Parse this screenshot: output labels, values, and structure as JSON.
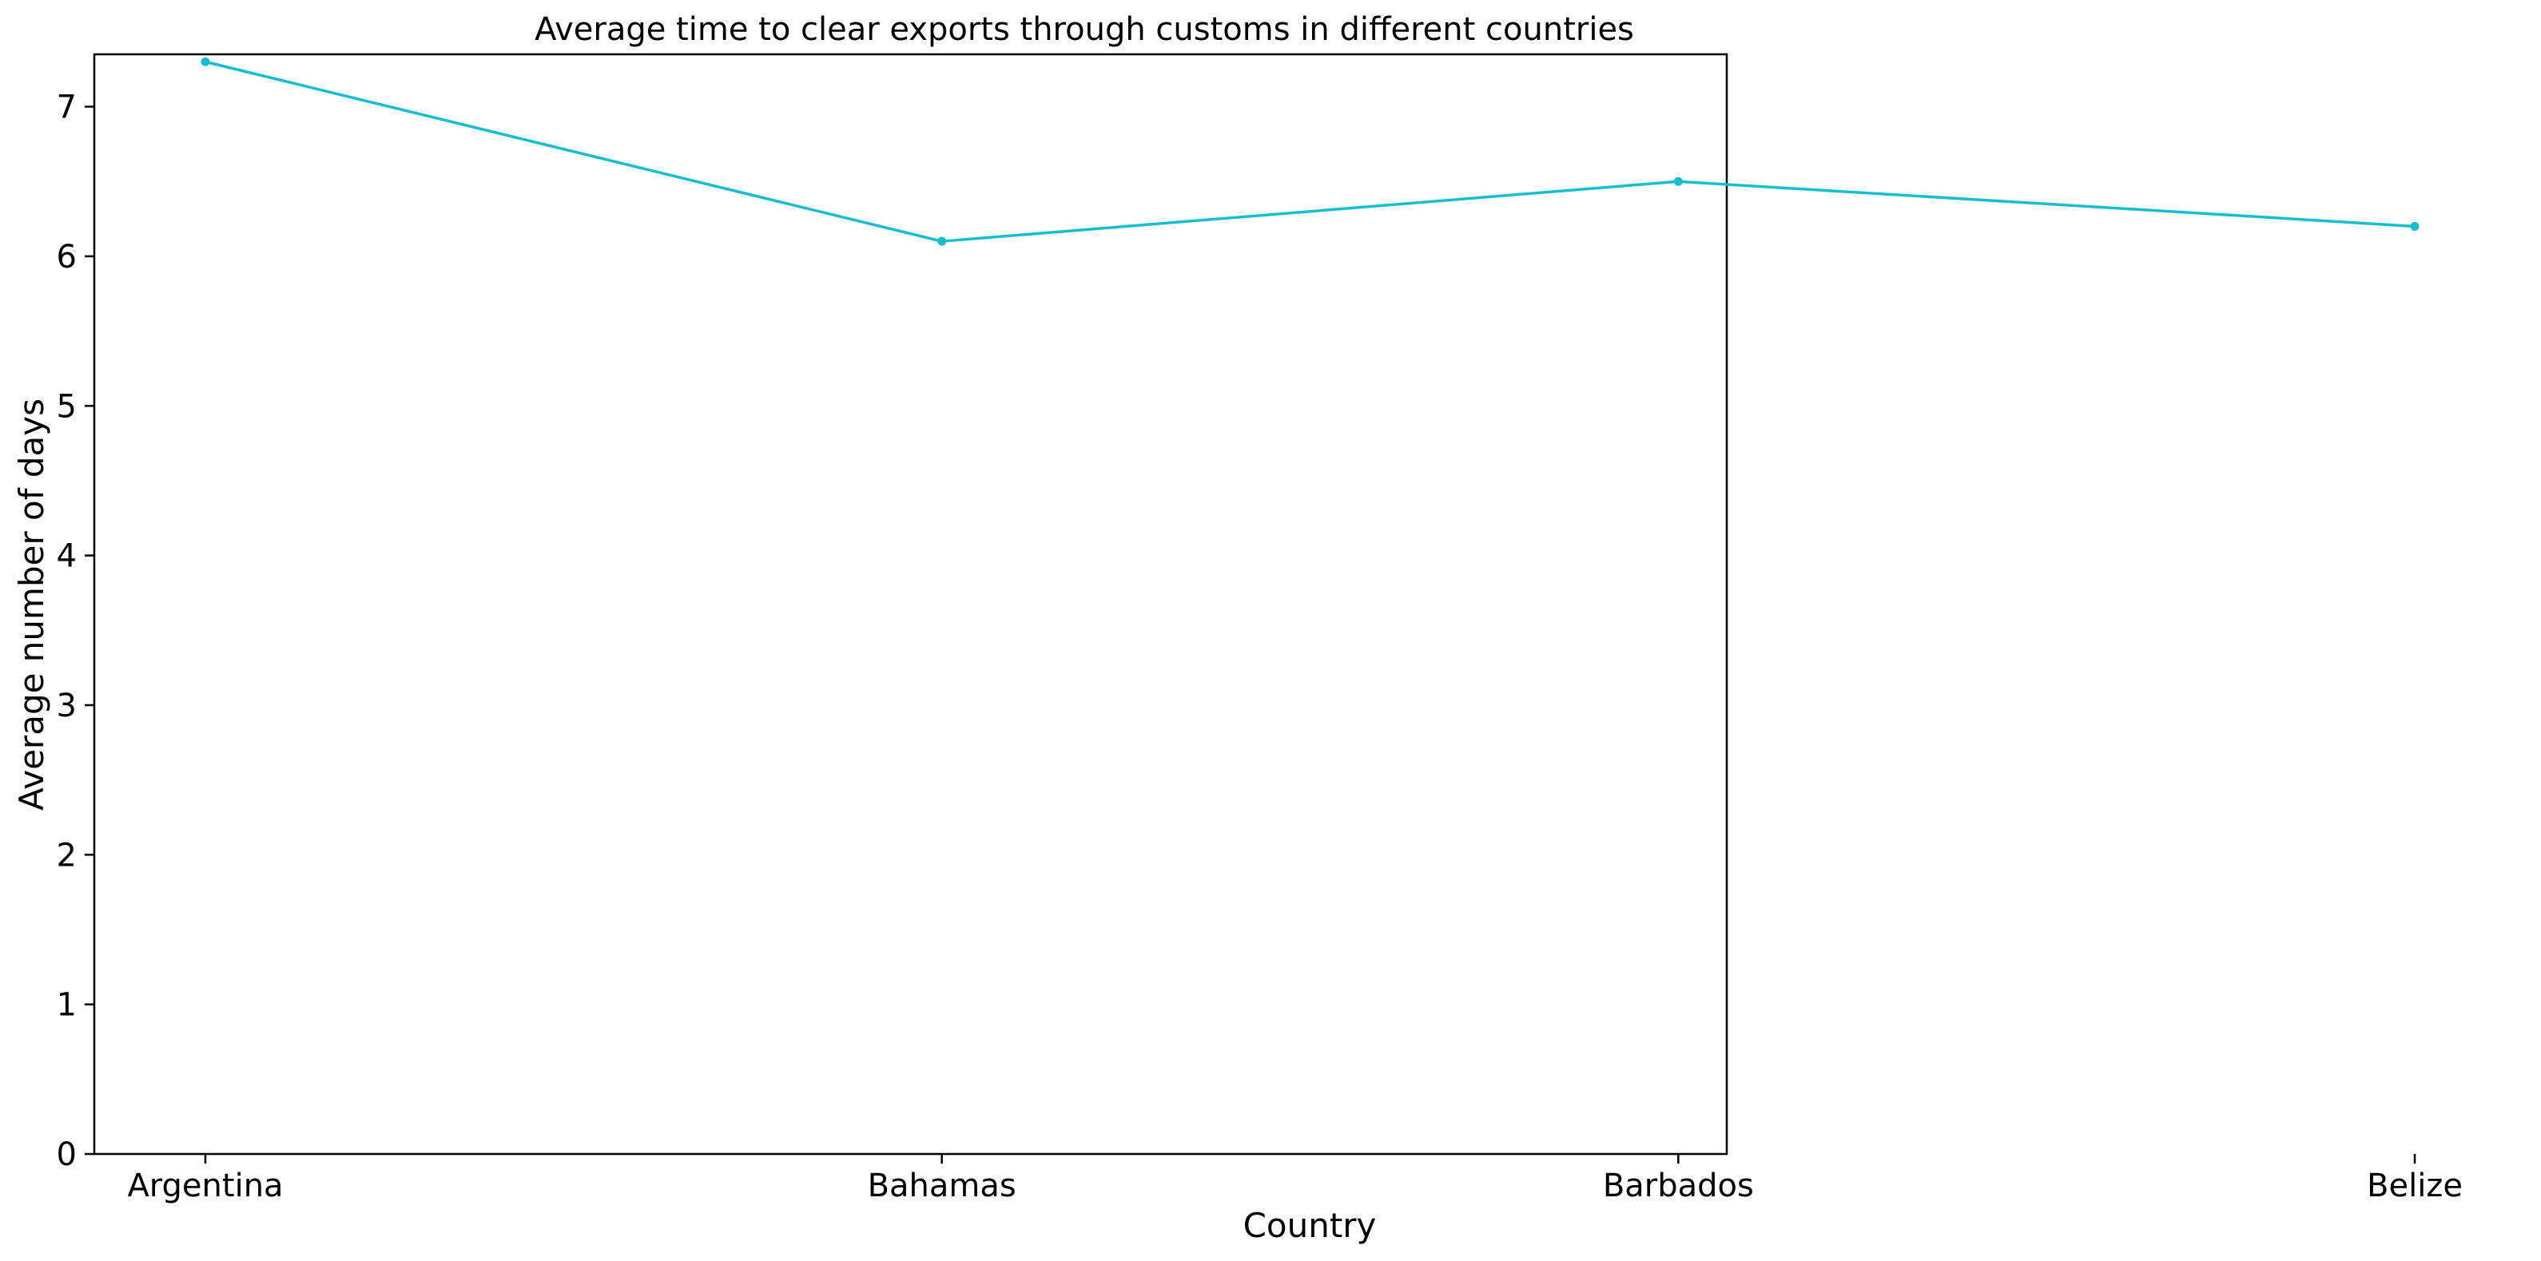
{
  "chart_data": {
    "type": "line",
    "title": "Average time to clear exports through customs in different countries",
    "xlabel": "Country",
    "ylabel": "Average number of days",
    "categories": [
      "Argentina",
      "Bahamas",
      "Barbados",
      "Belize"
    ],
    "series": [
      {
        "values": [
          7.3,
          6.1,
          6.5,
          6.2
        ],
        "color": "#17becf"
      }
    ],
    "ylim": [
      0,
      7.35
    ],
    "yticks": [
      0,
      1,
      2,
      3,
      4,
      5,
      6,
      7
    ],
    "grid": false,
    "legend": "none"
  }
}
